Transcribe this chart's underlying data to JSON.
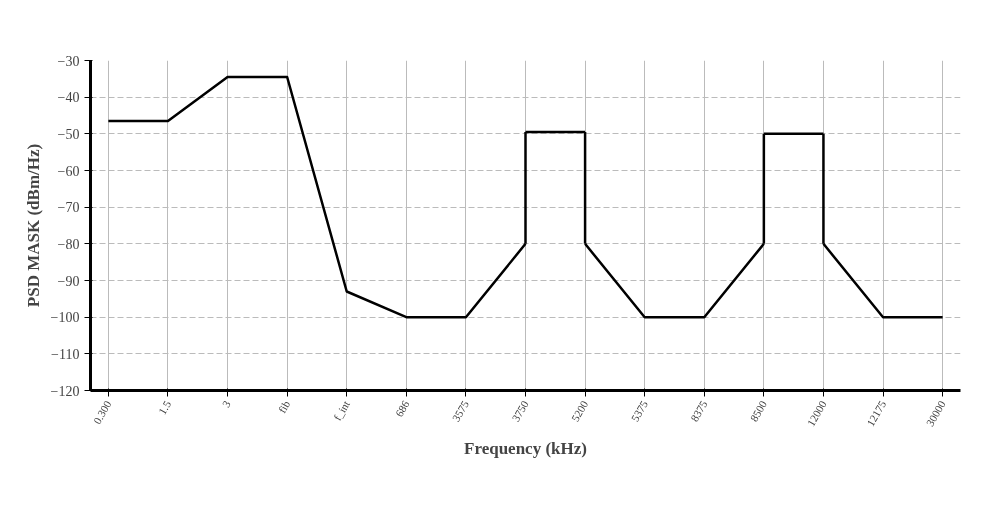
{
  "chart_data": {
    "type": "line",
    "xlabel": "Frequency (kHz)",
    "ylabel": "PSD MASK (dBm/Hz)",
    "categories": [
      "0.300",
      "1.5",
      "3",
      "fib",
      "f_int",
      "686",
      "3575",
      "3750",
      "5200",
      "5375",
      "8375",
      "8500",
      "12000",
      "12175",
      "30000"
    ],
    "series": [
      {
        "color": "#000000",
        "values": [
          -46.5,
          -46.5,
          -34.5,
          -34.5,
          -93,
          -100,
          -100,
          -80,
          null,
          null,
          null,
          null,
          null,
          null,
          null
        ],
        "errors": [
          null,
          null,
          null,
          null,
          null,
          null,
          null,
          [
            -80,
            -49.5
          ],
          null,
          null,
          null,
          null,
          null,
          null,
          null
        ]
      },
      {
        "color": "#000000",
        "values": [
          null,
          null,
          null,
          null,
          null,
          null,
          null,
          null,
          -80,
          -100,
          -100,
          -80,
          null,
          null,
          null
        ],
        "errors": [
          null,
          null,
          null,
          null,
          null,
          null,
          null,
          null,
          [
            -80,
            -49.5
          ],
          null,
          null,
          [
            -80,
            -50
          ],
          null,
          null,
          null
        ]
      },
      {
        "color": "#000000",
        "values": [
          null,
          null,
          null,
          null,
          null,
          null,
          null,
          null,
          null,
          null,
          null,
          null,
          -80,
          -100,
          -100
        ],
        "errors": [
          null,
          null,
          null,
          null,
          null,
          null,
          null,
          null,
          null,
          null,
          null,
          null,
          [
            -80,
            -50
          ],
          null,
          null
        ]
      },
      {
        "color": "#000000",
        "values": [
          null,
          null,
          null,
          null,
          null,
          null,
          null,
          -49.5,
          -49.5,
          null,
          null,
          -50,
          -50,
          null,
          null
        ]
      }
    ],
    "ylim": [
      -120,
      -30
    ],
    "yticks": [
      -120,
      -110,
      -100,
      -90,
      -80,
      -70,
      -60,
      -50,
      -40,
      -30
    ],
    "grid": true,
    "marker": "none",
    "line_style": "solid"
  }
}
